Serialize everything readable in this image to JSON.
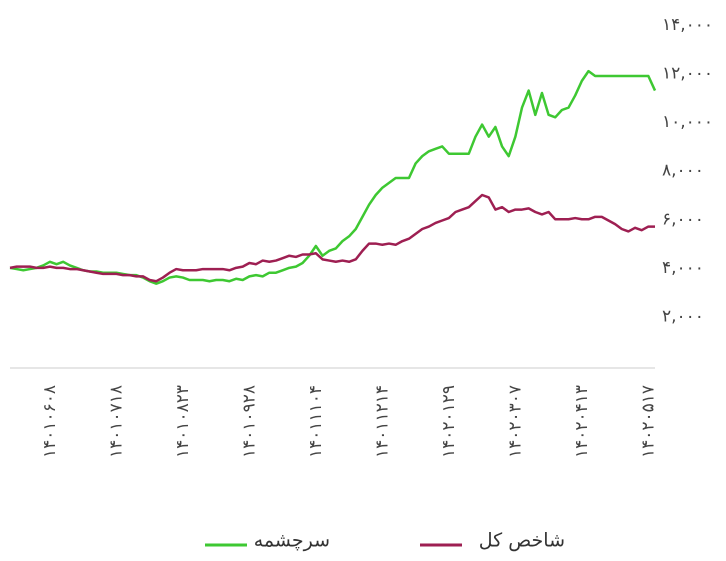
{
  "chart_data": {
    "type": "line",
    "categories": [
      null,
      null,
      null,
      null,
      null,
      null,
      "۱۴۰۱۰۶۰۸",
      null,
      null,
      null,
      null,
      null,
      null,
      null,
      null,
      null,
      "۱۴۰۱۰۷۱۸",
      null,
      null,
      null,
      null,
      null,
      null,
      null,
      null,
      null,
      "۱۴۰۱۰۸۲۳",
      null,
      null,
      null,
      null,
      null,
      null,
      null,
      null,
      null,
      "۱۴۰۱۰۹۲۸",
      null,
      null,
      null,
      null,
      null,
      null,
      null,
      null,
      null,
      "۱۴۰۱۱۱۰۴",
      null,
      null,
      null,
      null,
      null,
      null,
      null,
      null,
      null,
      "۱۴۰۱۱۲۱۴",
      null,
      null,
      null,
      null,
      null,
      null,
      null,
      null,
      null,
      "۱۴۰۲۰۱۲۹",
      null,
      null,
      null,
      null,
      null,
      null,
      null,
      null,
      null,
      "۱۴۰۲۰۳۰۷",
      null,
      null,
      null,
      null,
      null,
      null,
      null,
      null,
      null,
      "۱۴۰۲۰۴۱۳",
      null,
      null,
      null,
      null,
      null,
      null,
      null,
      null,
      null,
      "۱۴۰۲۰۵۱۷",
      null
    ],
    "series": [
      {
        "name": "سرچشمه",
        "color": "#3ec832",
        "values": [
          4000,
          3950,
          3900,
          3950,
          4000,
          4100,
          4250,
          4150,
          4250,
          4100,
          4000,
          3900,
          3850,
          3850,
          3800,
          3800,
          3800,
          3750,
          3700,
          3700,
          3600,
          3450,
          3350,
          3450,
          3600,
          3650,
          3600,
          3500,
          3500,
          3500,
          3450,
          3500,
          3500,
          3450,
          3550,
          3500,
          3650,
          3700,
          3650,
          3800,
          3800,
          3900,
          4000,
          4050,
          4200,
          4500,
          4900,
          4500,
          4700,
          4800,
          5100,
          5300,
          5600,
          6100,
          6600,
          7000,
          7300,
          7500,
          7700,
          7700,
          7700,
          8300,
          8600,
          8800,
          8900,
          9000,
          8700,
          8700,
          8700,
          8700,
          9400,
          9900,
          9400,
          9800,
          9000,
          8600,
          9400,
          10600,
          11300,
          10300,
          11200,
          10300,
          10200,
          10500,
          10600,
          11100,
          11700,
          12100,
          11900,
          11900,
          11900,
          11900,
          11900,
          11900,
          11900,
          11900,
          11900,
          11300
        ]
      },
      {
        "name": "شاخص کل",
        "color": "#9e1f52",
        "values": [
          4000,
          4050,
          4050,
          4050,
          4000,
          4000,
          4050,
          4000,
          4000,
          3950,
          3950,
          3900,
          3850,
          3800,
          3750,
          3750,
          3750,
          3700,
          3700,
          3650,
          3650,
          3500,
          3450,
          3600,
          3800,
          3950,
          3900,
          3900,
          3900,
          3950,
          3950,
          3950,
          3950,
          3900,
          4000,
          4050,
          4200,
          4150,
          4300,
          4250,
          4300,
          4400,
          4500,
          4450,
          4550,
          4550,
          4600,
          4350,
          4300,
          4250,
          4300,
          4250,
          4350,
          4700,
          5000,
          5000,
          4950,
          5000,
          4950,
          5100,
          5200,
          5400,
          5600,
          5700,
          5850,
          5950,
          6050,
          6300,
          6400,
          6500,
          6750,
          7000,
          6900,
          6400,
          6500,
          6300,
          6400,
          6400,
          6450,
          6300,
          6200,
          6300,
          6000,
          6000,
          6000,
          6050,
          6000,
          6000,
          6100,
          6100,
          5950,
          5800,
          5600,
          5500,
          5650,
          5550,
          5700,
          5700
        ]
      }
    ],
    "ylim": [
      0,
      14000
    ],
    "yticks": [
      {
        "value": 2000,
        "label": "۲,۰۰۰"
      },
      {
        "value": 4000,
        "label": "۴,۰۰۰"
      },
      {
        "value": 6000,
        "label": "۶,۰۰۰"
      },
      {
        "value": 8000,
        "label": "۸,۰۰۰"
      },
      {
        "value": 10000,
        "label": "۱۰,۰۰۰"
      },
      {
        "value": 12000,
        "label": "۱۲,۰۰۰"
      },
      {
        "value": 14000,
        "label": "۱۴,۰۰۰"
      }
    ],
    "grid": false
  }
}
